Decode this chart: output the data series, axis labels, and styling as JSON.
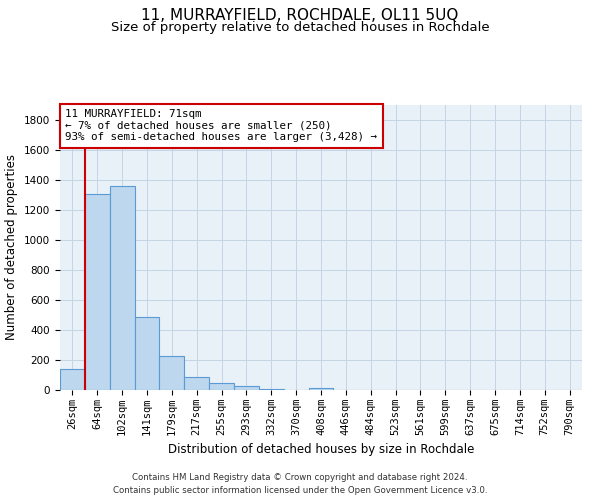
{
  "title": "11, MURRAYFIELD, ROCHDALE, OL11 5UQ",
  "subtitle": "Size of property relative to detached houses in Rochdale",
  "xlabel": "Distribution of detached houses by size in Rochdale",
  "ylabel": "Number of detached properties",
  "bar_labels": [
    "26sqm",
    "64sqm",
    "102sqm",
    "141sqm",
    "179sqm",
    "217sqm",
    "255sqm",
    "293sqm",
    "332sqm",
    "370sqm",
    "408sqm",
    "446sqm",
    "484sqm",
    "523sqm",
    "561sqm",
    "599sqm",
    "637sqm",
    "675sqm",
    "714sqm",
    "752sqm",
    "790sqm"
  ],
  "bar_values": [
    140,
    1310,
    1360,
    490,
    230,
    85,
    50,
    25,
    10,
    0,
    15,
    0,
    0,
    0,
    0,
    0,
    0,
    0,
    0,
    0,
    0
  ],
  "bar_color": "#BDD7EE",
  "bar_edge_color": "#5B9BD5",
  "vline_color": "#CC0000",
  "annotation_title": "11 MURRAYFIELD: 71sqm",
  "annotation_line1": "← 7% of detached houses are smaller (250)",
  "annotation_line2": "93% of semi-detached houses are larger (3,428) →",
  "annotation_box_color": "#ffffff",
  "annotation_box_edge": "#CC0000",
  "ylim": [
    0,
    1900
  ],
  "yticks": [
    0,
    200,
    400,
    600,
    800,
    1000,
    1200,
    1400,
    1600,
    1800
  ],
  "footnote1": "Contains HM Land Registry data © Crown copyright and database right 2024.",
  "footnote2": "Contains public sector information licensed under the Open Government Licence v3.0.",
  "bg_color": "#ffffff",
  "plot_bg_color": "#E8F0F8",
  "grid_color": "#C5D5E5",
  "title_fontsize": 11,
  "subtitle_fontsize": 9.5,
  "axis_label_fontsize": 8.5,
  "tick_fontsize": 7.5,
  "footnote_fontsize": 6.2
}
